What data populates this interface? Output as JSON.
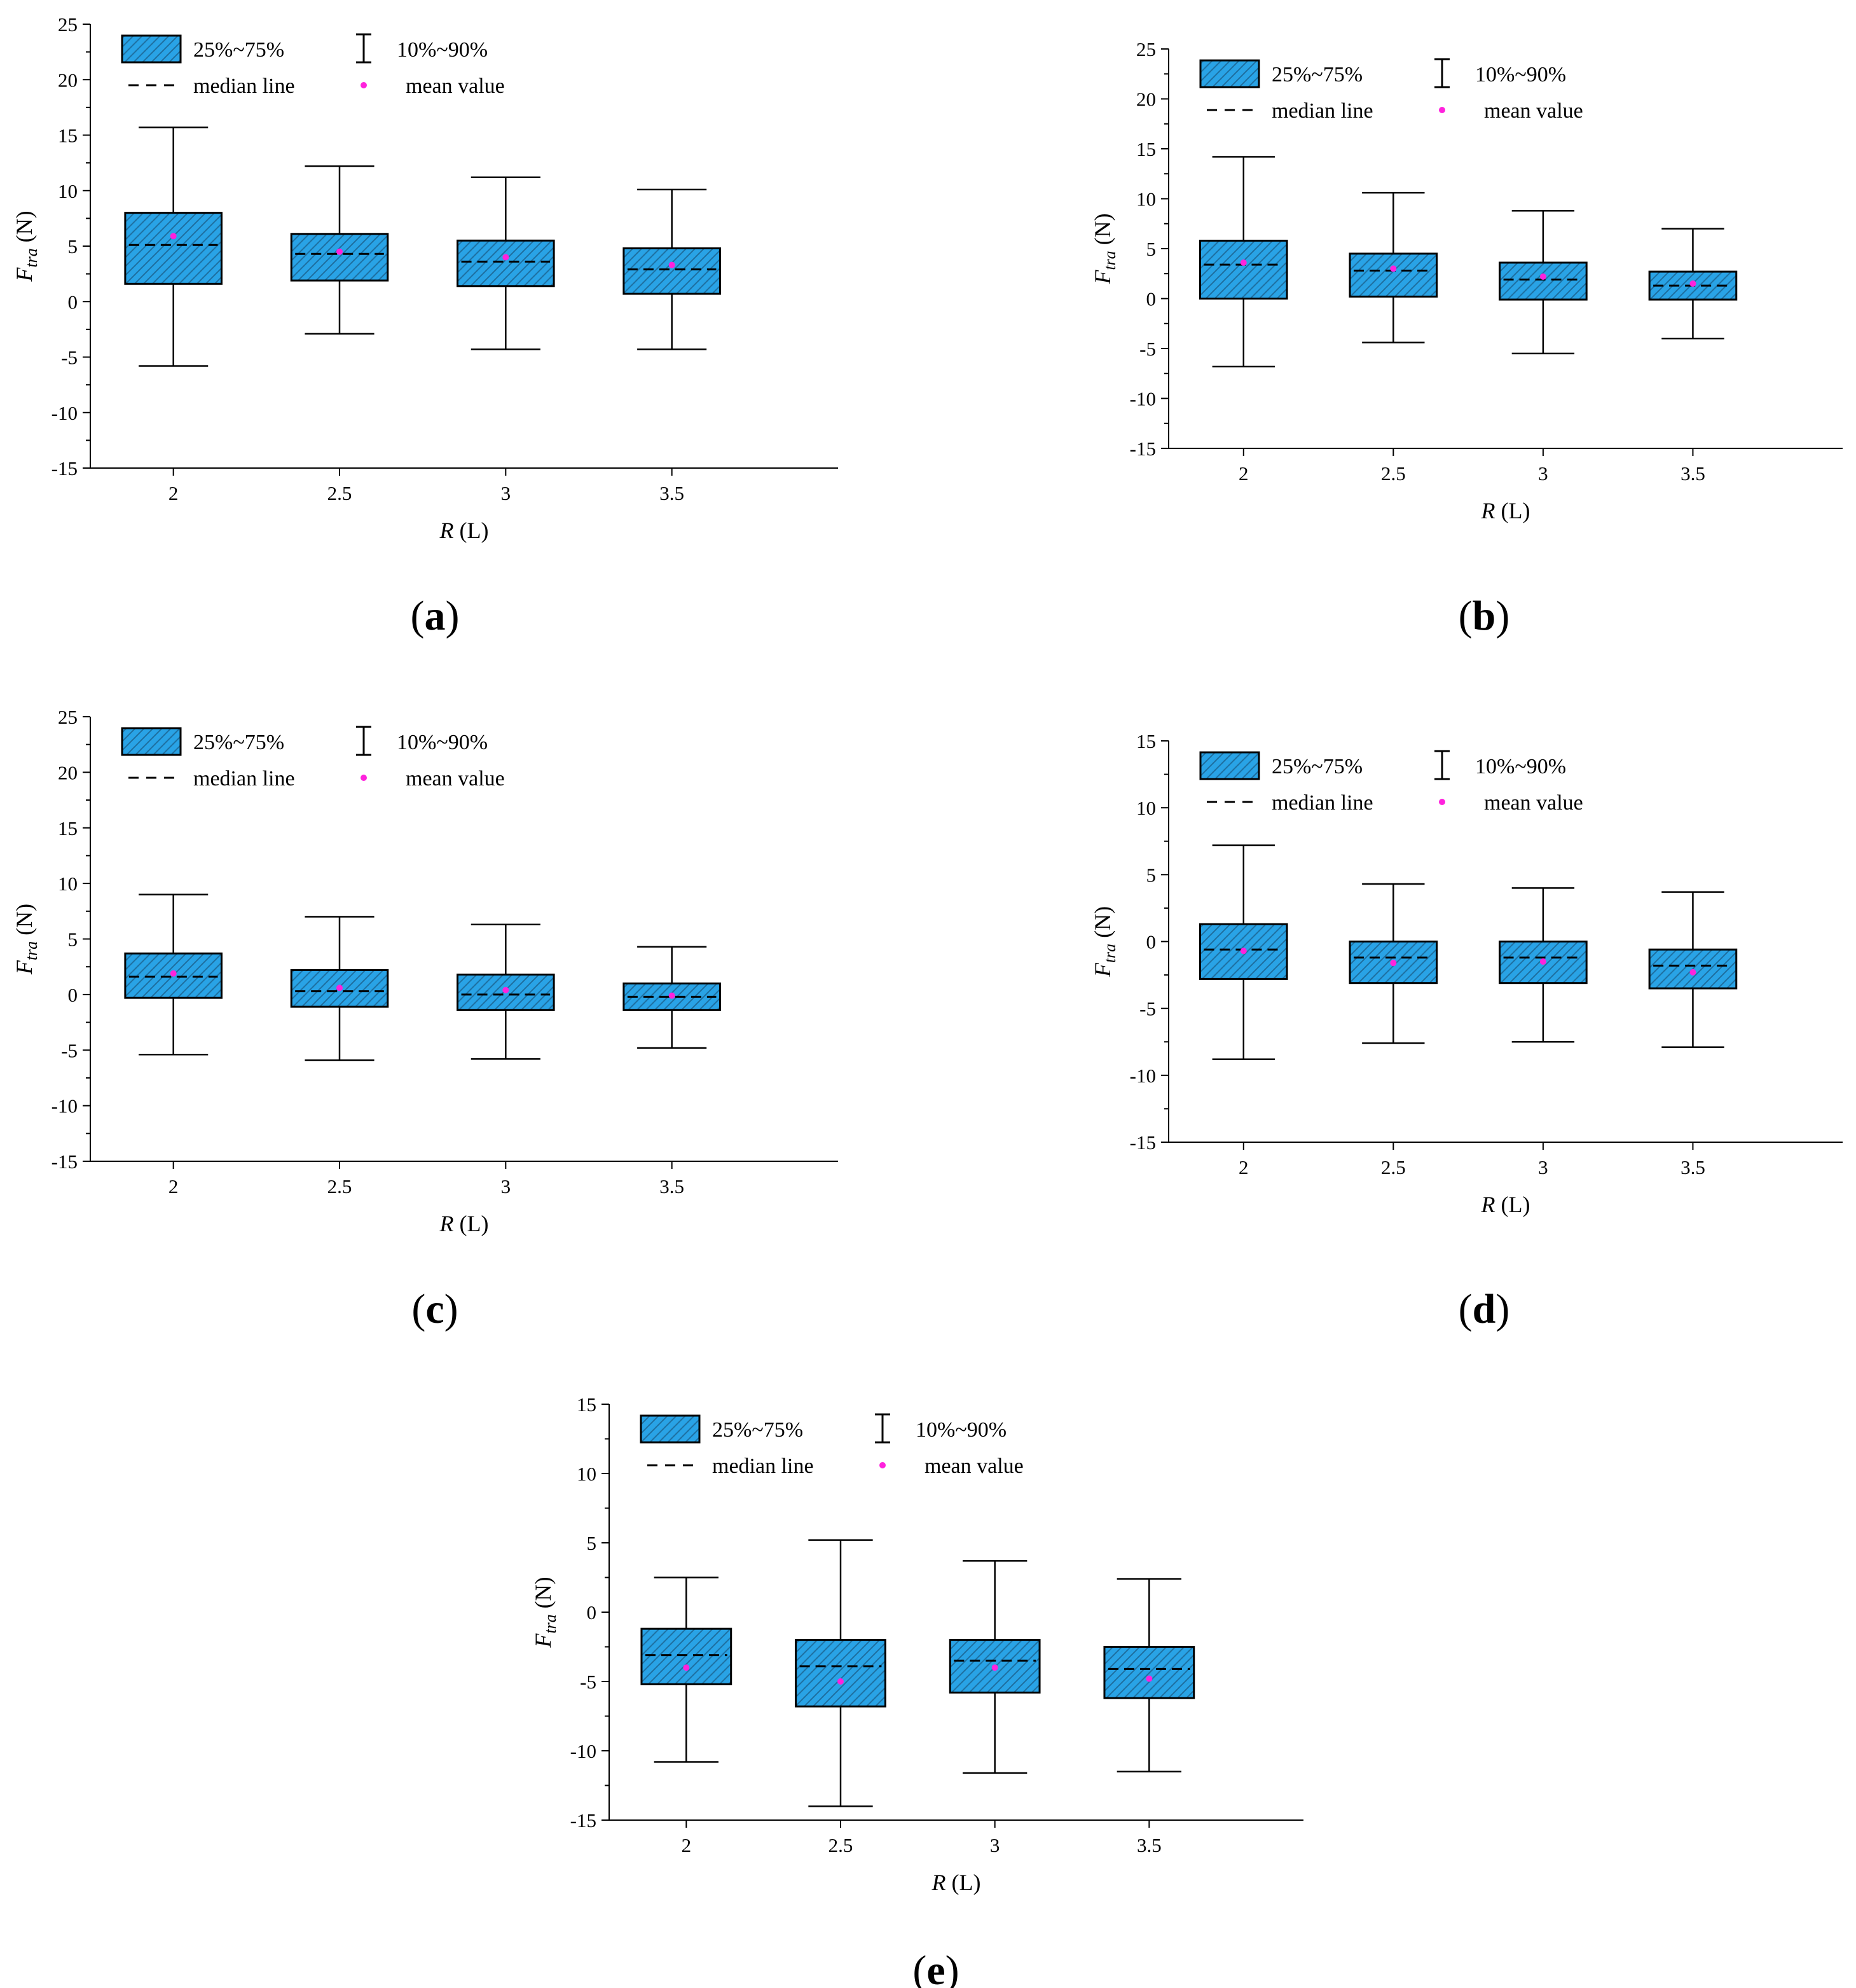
{
  "legend": {
    "box": "25%~75%",
    "whisker": "10%~90%",
    "median": "median line",
    "mean": "mean value"
  },
  "colors": {
    "box_fill": "#29a3e6",
    "outline": "#000000",
    "hatch": "#1e6fa0",
    "mean": "#ff22dd"
  },
  "chart_data": [
    {
      "panel": "(a)",
      "type": "box",
      "title": "",
      "xlabel": "R (L)",
      "ylabel": "Ftra (N)",
      "categories": [
        "2",
        "2.5",
        "3",
        "3.5"
      ],
      "ylim": [
        -15,
        25
      ],
      "yticks": [
        -15,
        -10,
        -5,
        0,
        5,
        10,
        15,
        20,
        25
      ],
      "grid": false,
      "legend_position": "top",
      "boxes": [
        {
          "p10": -5.8,
          "q1": 1.6,
          "median": 5.1,
          "q3": 8.0,
          "p90": 15.7,
          "mean": 5.9
        },
        {
          "p10": -2.9,
          "q1": 1.9,
          "median": 4.3,
          "q3": 6.1,
          "p90": 12.2,
          "mean": 4.5
        },
        {
          "p10": -4.3,
          "q1": 1.4,
          "median": 3.6,
          "q3": 5.5,
          "p90": 11.2,
          "mean": 4.0
        },
        {
          "p10": -4.3,
          "q1": 0.7,
          "median": 2.9,
          "q3": 4.8,
          "p90": 10.1,
          "mean": 3.3
        }
      ]
    },
    {
      "panel": "(b)",
      "type": "box",
      "title": "",
      "xlabel": "R (L)",
      "ylabel": "Ftra (N)",
      "categories": [
        "2",
        "2.5",
        "3",
        "3.5"
      ],
      "ylim": [
        -15,
        25
      ],
      "yticks": [
        -15,
        -10,
        -5,
        0,
        5,
        10,
        15,
        20,
        25
      ],
      "grid": false,
      "legend_position": "top",
      "boxes": [
        {
          "p10": -6.8,
          "q1": 0.0,
          "median": 3.4,
          "q3": 5.8,
          "p90": 14.2,
          "mean": 3.6
        },
        {
          "p10": -4.4,
          "q1": 0.2,
          "median": 2.8,
          "q3": 4.5,
          "p90": 10.6,
          "mean": 3.0
        },
        {
          "p10": -5.5,
          "q1": -0.1,
          "median": 1.9,
          "q3": 3.6,
          "p90": 8.8,
          "mean": 2.2
        },
        {
          "p10": -4.0,
          "q1": -0.1,
          "median": 1.3,
          "q3": 2.7,
          "p90": 7.0,
          "mean": 1.5
        }
      ]
    },
    {
      "panel": "(c)",
      "type": "box",
      "title": "",
      "xlabel": "R (L)",
      "ylabel": "Ftra (N)",
      "categories": [
        "2",
        "2.5",
        "3",
        "3.5"
      ],
      "ylim": [
        -15,
        25
      ],
      "yticks": [
        -15,
        -10,
        -5,
        0,
        5,
        10,
        15,
        20,
        25
      ],
      "grid": false,
      "legend_position": "top",
      "boxes": [
        {
          "p10": -5.4,
          "q1": -0.3,
          "median": 1.6,
          "q3": 3.7,
          "p90": 9.0,
          "mean": 1.9
        },
        {
          "p10": -5.9,
          "q1": -1.1,
          "median": 0.3,
          "q3": 2.2,
          "p90": 7.0,
          "mean": 0.6
        },
        {
          "p10": -5.8,
          "q1": -1.4,
          "median": 0.0,
          "q3": 1.8,
          "p90": 6.3,
          "mean": 0.4
        },
        {
          "p10": -4.8,
          "q1": -1.4,
          "median": -0.2,
          "q3": 1.0,
          "p90": 4.3,
          "mean": -0.1
        }
      ]
    },
    {
      "panel": "(d)",
      "type": "box",
      "title": "",
      "xlabel": "R (L)",
      "ylabel": "Ftra (N)",
      "categories": [
        "2",
        "2.5",
        "3",
        "3.5"
      ],
      "ylim": [
        -15,
        15
      ],
      "yticks": [
        -15,
        -10,
        -5,
        0,
        5,
        10,
        15
      ],
      "grid": false,
      "legend_position": "top",
      "boxes": [
        {
          "p10": -8.8,
          "q1": -2.8,
          "median": -0.6,
          "q3": 1.3,
          "p90": 7.2,
          "mean": -0.7
        },
        {
          "p10": -7.6,
          "q1": -3.1,
          "median": -1.2,
          "q3": 0.0,
          "p90": 4.3,
          "mean": -1.6
        },
        {
          "p10": -7.5,
          "q1": -3.1,
          "median": -1.2,
          "q3": 0.0,
          "p90": 4.0,
          "mean": -1.5
        },
        {
          "p10": -7.9,
          "q1": -3.5,
          "median": -1.8,
          "q3": -0.6,
          "p90": 3.7,
          "mean": -2.3
        }
      ]
    },
    {
      "panel": "(e)",
      "type": "box",
      "title": "",
      "xlabel": "R (L)",
      "ylabel": "Ftra (N)",
      "categories": [
        "2",
        "2.5",
        "3",
        "3.5"
      ],
      "ylim": [
        -15,
        15
      ],
      "yticks": [
        -15,
        -10,
        -5,
        0,
        5,
        10,
        15
      ],
      "grid": false,
      "legend_position": "top",
      "boxes": [
        {
          "p10": -10.8,
          "q1": -5.2,
          "median": -3.1,
          "q3": -1.2,
          "p90": 2.5,
          "mean": -4.0
        },
        {
          "p10": -14.0,
          "q1": -6.8,
          "median": -3.9,
          "q3": -2.0,
          "p90": 5.2,
          "mean": -5.0
        },
        {
          "p10": -11.6,
          "q1": -5.8,
          "median": -3.5,
          "q3": -2.0,
          "p90": 3.7,
          "mean": -4.0
        },
        {
          "p10": -11.5,
          "q1": -6.2,
          "median": -4.1,
          "q3": -2.5,
          "p90": 2.4,
          "mean": -4.8
        }
      ]
    }
  ]
}
